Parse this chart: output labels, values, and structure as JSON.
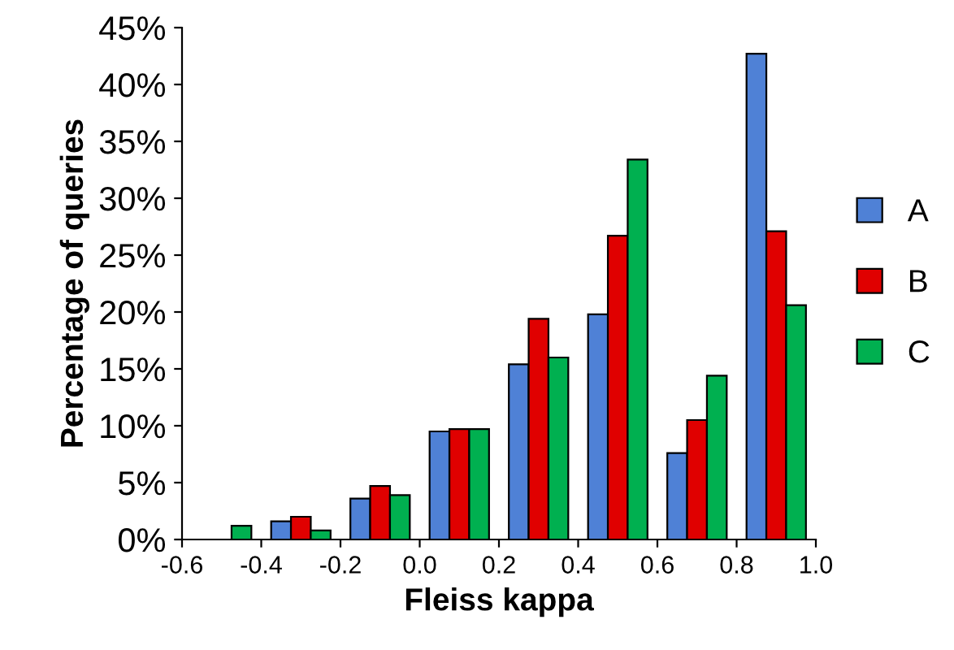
{
  "chart_data": {
    "type": "bar",
    "xlabel": "Fleiss kappa",
    "ylabel": "Percentage of queries",
    "x": [
      -0.5,
      -0.3,
      -0.1,
      0.1,
      0.3,
      0.5,
      0.7,
      0.9
    ],
    "series": [
      {
        "name": "A",
        "color": "#4f81d6",
        "values": [
          null,
          1.6,
          3.6,
          9.5,
          15.4,
          19.8,
          7.6,
          42.7
        ]
      },
      {
        "name": "B",
        "color": "#e00000",
        "values": [
          null,
          2.0,
          4.7,
          9.7,
          19.4,
          26.7,
          10.5,
          27.1
        ]
      },
      {
        "name": "C",
        "color": "#00b050",
        "values": [
          1.2,
          0.8,
          3.9,
          9.7,
          16.0,
          33.4,
          14.4,
          20.6
        ]
      }
    ],
    "xlim": [
      -0.6,
      1.0
    ],
    "xticks": [
      -0.6,
      -0.4,
      -0.2,
      {
        "value": 0,
        "label": "0.0"
      },
      0.2,
      0.4,
      0.6,
      0.8,
      {
        "value": 1,
        "label": "1.0"
      }
    ],
    "ylim": [
      0,
      45
    ],
    "yticks": [
      {
        "value": 0,
        "label": "0%"
      },
      {
        "value": 5,
        "label": "5%"
      },
      {
        "value": 10,
        "label": "10%"
      },
      {
        "value": 15,
        "label": "15%"
      },
      {
        "value": 20,
        "label": "20%"
      },
      {
        "value": 25,
        "label": "25%"
      },
      {
        "value": 30,
        "label": "30%"
      },
      {
        "value": 35,
        "label": "35%"
      },
      {
        "value": 40,
        "label": "40%"
      },
      {
        "value": 45,
        "label": "45%"
      }
    ],
    "grid": false,
    "legend": "right"
  }
}
